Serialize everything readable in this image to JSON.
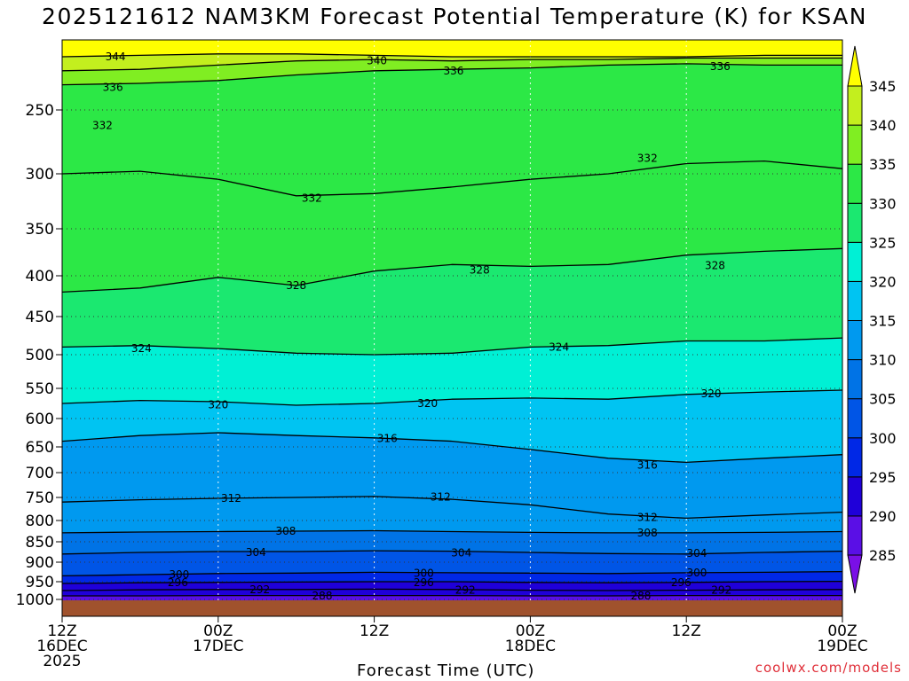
{
  "title": "2025121612 NAM3KM Forecast Potential Temperature (K) for KSAN",
  "credit": "coolwx.com/models",
  "chart_data": {
    "type": "heatmap",
    "title": "2025121612 NAM3KM Forecast Potential Temperature (K) for KSAN",
    "xlabel": "Forecast Time (UTC)",
    "ylabel": "",
    "x_ticks": [
      {
        "hour": 0,
        "lines": [
          "12Z",
          "16DEC",
          "2025"
        ]
      },
      {
        "hour": 12,
        "lines": [
          "00Z",
          "17DEC"
        ]
      },
      {
        "hour": 24,
        "lines": [
          "12Z"
        ]
      },
      {
        "hour": 36,
        "lines": [
          "00Z",
          "18DEC"
        ]
      },
      {
        "hour": 48,
        "lines": [
          "12Z"
        ]
      },
      {
        "hour": 60,
        "lines": [
          "00Z",
          "19DEC"
        ]
      }
    ],
    "xlim": [
      0,
      60
    ],
    "y_ticks": [
      250,
      300,
      350,
      400,
      450,
      500,
      550,
      600,
      650,
      700,
      750,
      800,
      850,
      900,
      950,
      1000
    ],
    "ylim": [
      200,
      1013
    ],
    "grid": true,
    "colorbar": {
      "ticks": [
        285,
        290,
        295,
        300,
        305,
        310,
        315,
        320,
        325,
        330,
        335,
        340,
        345
      ],
      "colors": [
        "#7a0fe6",
        "#5a0fe6",
        "#1f00d9",
        "#0028e6",
        "#0055e6",
        "#0073e6",
        "#0099ef",
        "#00c4f2",
        "#00f0d5",
        "#1be870",
        "#2ce846",
        "#80ee22",
        "#c3ef1e",
        "#ffff00"
      ]
    },
    "contours": [
      {
        "level": 344,
        "pressures": [
          212,
          211,
          210,
          210,
          211,
          212,
          212,
          212,
          212,
          211,
          211
        ]
      },
      {
        "level": 340,
        "pressures": [
          222,
          221,
          218,
          215,
          214,
          215,
          214,
          214,
          213,
          213,
          213
        ]
      },
      {
        "level": 336,
        "pressures": [
          232,
          231,
          229,
          225,
          222,
          221,
          220,
          218,
          217,
          218,
          218
        ]
      },
      {
        "level": 332,
        "pressures": [
          300,
          298,
          305,
          320,
          318,
          312,
          305,
          300,
          292,
          290,
          296
        ]
      },
      {
        "level": 328,
        "pressures": [
          420,
          415,
          402,
          412,
          395,
          388,
          390,
          388,
          378,
          374,
          371
        ]
      },
      {
        "level": 324,
        "pressures": [
          490,
          488,
          492,
          498,
          500,
          498,
          490,
          488,
          482,
          482,
          478
        ]
      },
      {
        "level": 320,
        "pressures": [
          575,
          570,
          572,
          578,
          575,
          568,
          566,
          568,
          560,
          556,
          553
        ]
      },
      {
        "level": 316,
        "pressures": [
          640,
          630,
          625,
          630,
          634,
          640,
          655,
          672,
          680,
          672,
          665
        ]
      },
      {
        "level": 312,
        "pressures": [
          760,
          755,
          752,
          750,
          748,
          754,
          766,
          786,
          795,
          788,
          782
        ]
      },
      {
        "level": 308,
        "pressures": [
          829,
          827,
          826,
          825,
          824,
          826,
          828,
          829,
          829,
          828,
          826
        ]
      },
      {
        "level": 304,
        "pressures": [
          880,
          876,
          874,
          874,
          872,
          873,
          876,
          879,
          880,
          876,
          873
        ]
      },
      {
        "level": 300,
        "pressures": [
          935,
          932,
          929,
          928,
          926,
          927,
          928,
          929,
          927,
          926,
          924
        ]
      },
      {
        "level": 296,
        "pressures": [
          955,
          953,
          952,
          951,
          950,
          950,
          952,
          953,
          952,
          950,
          949
        ]
      },
      {
        "level": 292,
        "pressures": [
          975,
          973,
          972,
          972,
          971,
          972,
          974,
          975,
          974,
          973,
          972
        ]
      },
      {
        "level": 288,
        "pressures": [
          990,
          990,
          989,
          989,
          989,
          989,
          990,
          990,
          989,
          989,
          989
        ]
      }
    ],
    "contour_labels": [
      {
        "text": "344",
        "hour": 4.1,
        "pressure": 212
      },
      {
        "text": "340",
        "hour": 24.2,
        "pressure": 215
      },
      {
        "text": "336",
        "hour": 30.1,
        "pressure": 222
      },
      {
        "text": "336",
        "hour": 50.6,
        "pressure": 219
      },
      {
        "text": "336",
        "hour": 3.9,
        "pressure": 234
      },
      {
        "text": "332",
        "hour": 3.1,
        "pressure": 262
      },
      {
        "text": "332",
        "hour": 45.0,
        "pressure": 288
      },
      {
        "text": "332",
        "hour": 19.2,
        "pressure": 322
      },
      {
        "text": "328",
        "hour": 32.1,
        "pressure": 394
      },
      {
        "text": "328",
        "hour": 50.2,
        "pressure": 389
      },
      {
        "text": "328",
        "hour": 18.0,
        "pressure": 412
      },
      {
        "text": "324",
        "hour": 6.1,
        "pressure": 492
      },
      {
        "text": "324",
        "hour": 38.2,
        "pressure": 490
      },
      {
        "text": "320",
        "hour": 12.0,
        "pressure": 577
      },
      {
        "text": "320",
        "hour": 28.1,
        "pressure": 575
      },
      {
        "text": "320",
        "hour": 49.9,
        "pressure": 559
      },
      {
        "text": "316",
        "hour": 25.0,
        "pressure": 635
      },
      {
        "text": "316",
        "hour": 45.0,
        "pressure": 685
      },
      {
        "text": "312",
        "hour": 13.0,
        "pressure": 752
      },
      {
        "text": "312",
        "hour": 29.1,
        "pressure": 749
      },
      {
        "text": "312",
        "hour": 45.0,
        "pressure": 793
      },
      {
        "text": "308",
        "hour": 17.2,
        "pressure": 825
      },
      {
        "text": "308",
        "hour": 45.0,
        "pressure": 829
      },
      {
        "text": "304",
        "hour": 14.9,
        "pressure": 876
      },
      {
        "text": "304",
        "hour": 30.7,
        "pressure": 877
      },
      {
        "text": "304",
        "hour": 48.8,
        "pressure": 878
      },
      {
        "text": "300",
        "hour": 9.0,
        "pressure": 932
      },
      {
        "text": "300",
        "hour": 27.8,
        "pressure": 928
      },
      {
        "text": "300",
        "hour": 48.8,
        "pressure": 927
      },
      {
        "text": "296",
        "hour": 8.9,
        "pressure": 952
      },
      {
        "text": "296",
        "hour": 27.8,
        "pressure": 952
      },
      {
        "text": "296",
        "hour": 47.6,
        "pressure": 952
      },
      {
        "text": "292",
        "hour": 15.2,
        "pressure": 972
      },
      {
        "text": "292",
        "hour": 31.0,
        "pressure": 974
      },
      {
        "text": "292",
        "hour": 50.7,
        "pressure": 974
      },
      {
        "text": "288",
        "hour": 20.0,
        "pressure": 990
      },
      {
        "text": "288",
        "hour": 44.5,
        "pressure": 990
      }
    ]
  }
}
